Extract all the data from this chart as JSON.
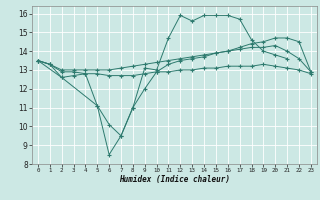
{
  "xlabel": "Humidex (Indice chaleur)",
  "bg_color": "#cce8e4",
  "grid_color": "#ffffff",
  "line_color": "#2d7a6e",
  "xlim": [
    -0.5,
    23.5
  ],
  "ylim": [
    8,
    16.4
  ],
  "yticks": [
    8,
    9,
    10,
    11,
    12,
    13,
    14,
    15,
    16
  ],
  "xticks": [
    0,
    1,
    2,
    3,
    4,
    5,
    6,
    7,
    8,
    9,
    10,
    11,
    12,
    13,
    14,
    15,
    16,
    17,
    18,
    19,
    20,
    21,
    22,
    23
  ],
  "series1_x": [
    0,
    1,
    2,
    3,
    4,
    5,
    6,
    7,
    8,
    9,
    10,
    11,
    12,
    13,
    14,
    15,
    16,
    17,
    18,
    19,
    20,
    21
  ],
  "series1_y": [
    13.5,
    13.3,
    12.6,
    12.7,
    12.8,
    11.1,
    8.5,
    9.5,
    11.0,
    13.1,
    13.0,
    14.7,
    15.9,
    15.6,
    15.9,
    15.9,
    15.9,
    15.7,
    14.6,
    14.0,
    13.8,
    13.6
  ],
  "series2_x": [
    0,
    1,
    2,
    3,
    4,
    5,
    6,
    7,
    8,
    9,
    10,
    11,
    12,
    13,
    14,
    15,
    16,
    17,
    18,
    19,
    20,
    21,
    22,
    23
  ],
  "series2_y": [
    13.5,
    13.3,
    13.0,
    13.0,
    13.0,
    13.0,
    13.0,
    13.1,
    13.2,
    13.3,
    13.4,
    13.5,
    13.6,
    13.7,
    13.8,
    13.9,
    14.0,
    14.1,
    14.2,
    14.2,
    14.3,
    14.0,
    13.6,
    12.9
  ],
  "series3_x": [
    0,
    1,
    2,
    3,
    4,
    5,
    6,
    7,
    8,
    9,
    10,
    11,
    12,
    13,
    14,
    15,
    16,
    17,
    18,
    19,
    20,
    21,
    22,
    23
  ],
  "series3_y": [
    13.5,
    13.3,
    12.9,
    12.9,
    12.8,
    12.8,
    12.7,
    12.7,
    12.7,
    12.8,
    12.9,
    12.9,
    13.0,
    13.0,
    13.1,
    13.1,
    13.2,
    13.2,
    13.2,
    13.3,
    13.2,
    13.1,
    13.0,
    12.8
  ],
  "series4_x": [
    0,
    2,
    5,
    6,
    7,
    8,
    9,
    10,
    11,
    12,
    13,
    14,
    15,
    16,
    17,
    18,
    19,
    20,
    21,
    22,
    23
  ],
  "series4_y": [
    13.5,
    12.6,
    11.1,
    10.1,
    9.5,
    11.0,
    12.0,
    12.9,
    13.3,
    13.5,
    13.6,
    13.7,
    13.9,
    14.0,
    14.2,
    14.4,
    14.5,
    14.7,
    14.7,
    14.5,
    12.9
  ],
  "lw": 0.7,
  "ms": 2.5,
  "mew": 0.8
}
